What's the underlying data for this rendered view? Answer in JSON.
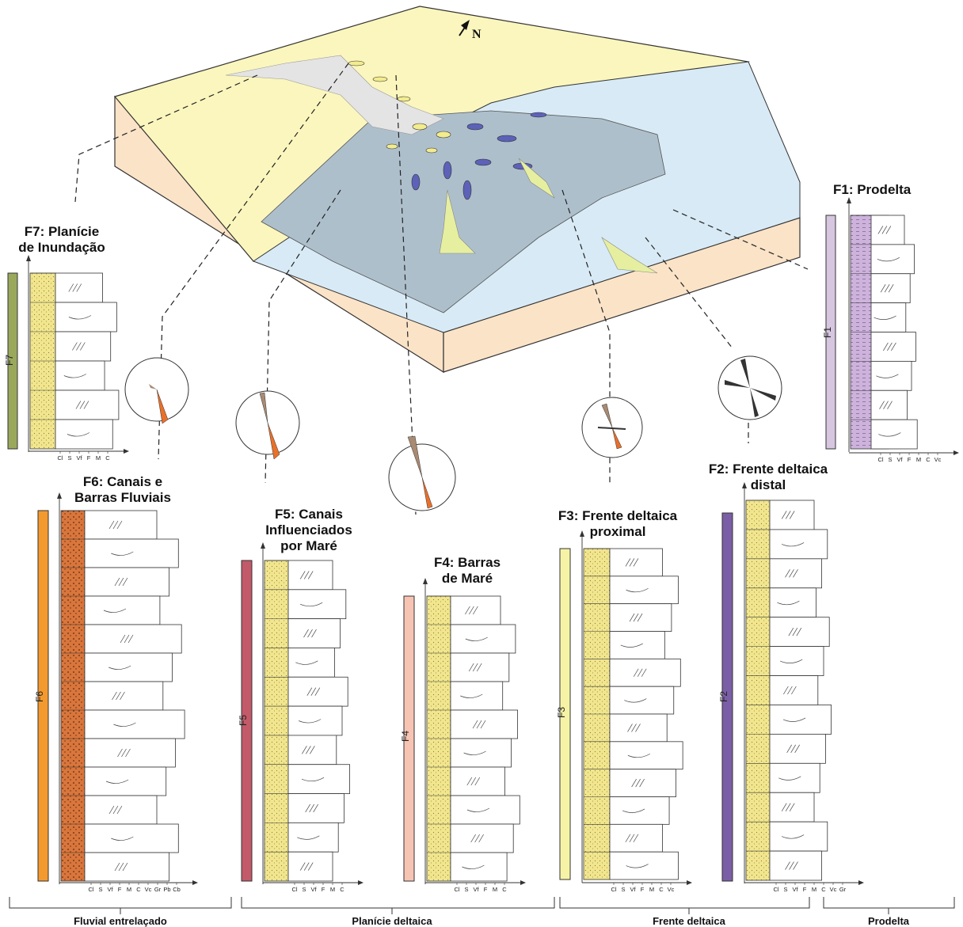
{
  "north_label": "N",
  "facies": [
    {
      "id": "F1",
      "title_lines": [
        "F1: Prodelta"
      ],
      "code": "F1",
      "bar_color": "#d6c6e0",
      "grain_ticks": [
        "Cl",
        "S",
        "Vf",
        "F",
        "M",
        "C",
        "Vc"
      ]
    },
    {
      "id": "F2",
      "title_lines": [
        "F2: Frente deltaica",
        "distal"
      ],
      "code": "F2",
      "bar_color": "#7a5fa6",
      "grain_ticks": [
        "Cl",
        "S",
        "Vf",
        "F",
        "M",
        "C",
        "Vc",
        "Gr"
      ]
    },
    {
      "id": "F3",
      "title_lines": [
        "F3: Frente deltaica",
        "proximal"
      ],
      "code": "F3",
      "bar_color": "#f6f3a6",
      "grain_ticks": [
        "Cl",
        "S",
        "Vf",
        "F",
        "M",
        "C",
        "Vc"
      ]
    },
    {
      "id": "F4",
      "title_lines": [
        "F4: Barras",
        "de Maré"
      ],
      "code": "F4",
      "bar_color": "#f7c4b3",
      "grain_ticks": [
        "Cl",
        "S",
        "Vf",
        "F",
        "M",
        "C"
      ]
    },
    {
      "id": "F5",
      "title_lines": [
        "F5: Canais",
        "Influenciados",
        "por Maré"
      ],
      "code": "F5",
      "bar_color": "#c25a69",
      "grain_ticks": [
        "Cl",
        "S",
        "Vf",
        "F",
        "M",
        "C"
      ]
    },
    {
      "id": "F6",
      "title_lines": [
        "F6: Canais e",
        "Barras Fluviais"
      ],
      "code": "F6",
      "bar_color": "#f39a2e",
      "grain_ticks": [
        "Cl",
        "S",
        "Vf",
        "F",
        "M",
        "C",
        "Vc",
        "Gr",
        "Pb",
        "Cb"
      ]
    },
    {
      "id": "F7",
      "title_lines": [
        "F7: Planície",
        "de Inundação"
      ],
      "code": "F7",
      "bar_color": "#9aa85c",
      "grain_ticks": [
        "Cl",
        "S",
        "Vf",
        "F",
        "M",
        "C"
      ]
    }
  ],
  "environments": [
    "Fluvial entrelaçado",
    "Planície deltaica",
    "Frente deltaica",
    "Prodelta"
  ],
  "colors": {
    "alluvial_plain": "#fbf6bd",
    "block_side": "#fbe3c8",
    "sea": "#d8eaf5",
    "bay": "#aebfcc",
    "bar_yellow": "#f2ec8e",
    "bar_blue": "#5d62b8",
    "sand": "#f1e68e",
    "gravel": "#d9763c",
    "mud": "#8b8b8b",
    "rose_orange": "#e8702a",
    "rose_brown": "#a98a72",
    "rose_dark": "#333333"
  }
}
